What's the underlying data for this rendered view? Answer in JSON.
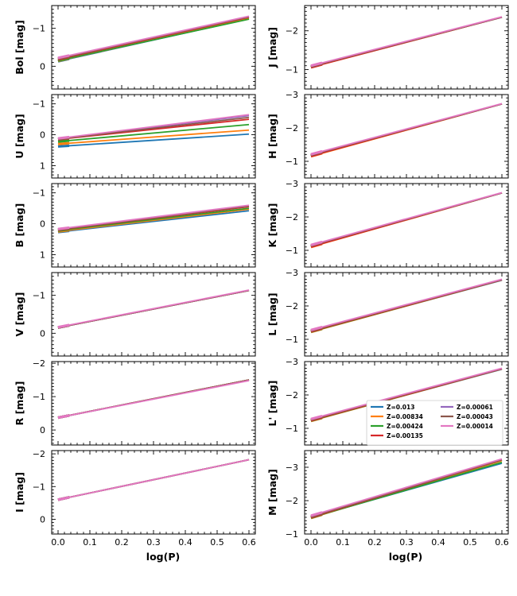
{
  "figure": {
    "xlabel": "log(P)"
  },
  "legend": {
    "entries": [
      {
        "label": "Z=0.013",
        "color": "#1f77b4"
      },
      {
        "label": "Z=0.00834",
        "color": "#ff7f0e"
      },
      {
        "label": "Z=0.00424",
        "color": "#2ca02c"
      },
      {
        "label": "Z=0.00135",
        "color": "#d62728"
      },
      {
        "label": "Z=0.00061",
        "color": "#9467bd"
      },
      {
        "label": "Z=0.00043",
        "color": "#8c564b"
      },
      {
        "label": "Z=0.00014",
        "color": "#e377c2"
      }
    ]
  },
  "chart_data": [
    {
      "type": "line",
      "panel": "Bol",
      "ylabel": "Bol [mag]",
      "xlim": [
        -0.02,
        0.62
      ],
      "ylim": [
        0.6,
        -1.6
      ],
      "yticks": [
        0,
        -1
      ],
      "yticklabels": [
        "0",
        "−1"
      ],
      "xticks": [
        0.0,
        0.1,
        0.2,
        0.3,
        0.4,
        0.5,
        0.6
      ],
      "xticklabels": [
        "0.0",
        "0.1",
        "0.2",
        "0.3",
        "0.4",
        "0.5",
        "0.6"
      ],
      "show_xticklabels": false,
      "x": [
        0.0,
        0.6
      ],
      "series": [
        {
          "name": "Z=0.013",
          "y": [
            -0.13,
            -1.25
          ]
        },
        {
          "name": "Z=0.00834",
          "y": [
            -0.14,
            -1.26
          ]
        },
        {
          "name": "Z=0.00424",
          "y": [
            -0.15,
            -1.24
          ]
        },
        {
          "name": "Z=0.00135",
          "y": [
            -0.18,
            -1.29
          ]
        },
        {
          "name": "Z=0.00061",
          "y": [
            -0.21,
            -1.31
          ]
        },
        {
          "name": "Z=0.00043",
          "y": [
            -0.2,
            -1.3
          ]
        },
        {
          "name": "Z=0.00014",
          "y": [
            -0.22,
            -1.32
          ]
        }
      ]
    },
    {
      "type": "line",
      "panel": "U",
      "ylabel": "U [mag]",
      "xlim": [
        -0.02,
        0.62
      ],
      "ylim": [
        1.4,
        -1.3
      ],
      "yticks": [
        1,
        0,
        -1
      ],
      "yticklabels": [
        "1",
        "0",
        "−1"
      ],
      "xticks": [
        0.0,
        0.1,
        0.2,
        0.3,
        0.4,
        0.5,
        0.6
      ],
      "xticklabels": [
        "0.0",
        "0.1",
        "0.2",
        "0.3",
        "0.4",
        "0.5",
        "0.6"
      ],
      "show_xticklabels": false,
      "x": [
        0.0,
        0.6
      ],
      "series": [
        {
          "name": "Z=0.013",
          "y": [
            0.38,
            -0.02
          ]
        },
        {
          "name": "Z=0.00834",
          "y": [
            0.3,
            -0.15
          ]
        },
        {
          "name": "Z=0.00424",
          "y": [
            0.22,
            -0.33
          ]
        },
        {
          "name": "Z=0.00135",
          "y": [
            0.15,
            -0.5
          ]
        },
        {
          "name": "Z=0.00061",
          "y": [
            0.13,
            -0.62
          ]
        },
        {
          "name": "Z=0.00043",
          "y": [
            0.14,
            -0.56
          ]
        },
        {
          "name": "Z=0.00014",
          "y": [
            0.12,
            -0.65
          ]
        }
      ]
    },
    {
      "type": "line",
      "panel": "B",
      "ylabel": "B [mag]",
      "xlim": [
        -0.02,
        0.62
      ],
      "ylim": [
        1.4,
        -1.3
      ],
      "yticks": [
        1,
        0,
        -1
      ],
      "yticklabels": [
        "1",
        "0",
        "−1"
      ],
      "xticks": [
        0.0,
        0.1,
        0.2,
        0.3,
        0.4,
        0.5,
        0.6
      ],
      "xticklabels": [
        "0.0",
        "0.1",
        "0.2",
        "0.3",
        "0.4",
        "0.5",
        "0.6"
      ],
      "show_xticklabels": false,
      "x": [
        0.0,
        0.6
      ],
      "series": [
        {
          "name": "Z=0.013",
          "y": [
            0.27,
            -0.42
          ]
        },
        {
          "name": "Z=0.00834",
          "y": [
            0.25,
            -0.47
          ]
        },
        {
          "name": "Z=0.00424",
          "y": [
            0.22,
            -0.5
          ]
        },
        {
          "name": "Z=0.00135",
          "y": [
            0.2,
            -0.55
          ]
        },
        {
          "name": "Z=0.00061",
          "y": [
            0.18,
            -0.59
          ]
        },
        {
          "name": "Z=0.00043",
          "y": [
            0.19,
            -0.57
          ]
        },
        {
          "name": "Z=0.00014",
          "y": [
            0.17,
            -0.6
          ]
        }
      ]
    },
    {
      "type": "line",
      "panel": "V",
      "ylabel": "V [mag]",
      "xlim": [
        -0.02,
        0.62
      ],
      "ylim": [
        0.6,
        -1.6
      ],
      "yticks": [
        0,
        -1
      ],
      "yticklabels": [
        "0",
        "−1"
      ],
      "xticks": [
        0.0,
        0.1,
        0.2,
        0.3,
        0.4,
        0.5,
        0.6
      ],
      "xticklabels": [
        "0.0",
        "0.1",
        "0.2",
        "0.3",
        "0.4",
        "0.5",
        "0.6"
      ],
      "show_xticklabels": false,
      "x": [
        0.0,
        0.6
      ],
      "series": [
        {
          "name": "Z=0.013",
          "y": [
            -0.15,
            -1.13
          ]
        },
        {
          "name": "Z=0.00834",
          "y": [
            -0.15,
            -1.13
          ]
        },
        {
          "name": "Z=0.00424",
          "y": [
            -0.15,
            -1.13
          ]
        },
        {
          "name": "Z=0.00135",
          "y": [
            -0.15,
            -1.13
          ]
        },
        {
          "name": "Z=0.00061",
          "y": [
            -0.15,
            -1.13
          ]
        },
        {
          "name": "Z=0.00043",
          "y": [
            -0.15,
            -1.13
          ]
        },
        {
          "name": "Z=0.00014",
          "y": [
            -0.16,
            -1.14
          ]
        }
      ]
    },
    {
      "type": "line",
      "panel": "R",
      "ylabel": "R [mag]",
      "xlim": [
        -0.02,
        0.62
      ],
      "ylim": [
        0.45,
        -2.05
      ],
      "yticks": [
        0,
        -1,
        -2
      ],
      "yticklabels": [
        "0",
        "−1",
        "−2"
      ],
      "xticks": [
        0.0,
        0.1,
        0.2,
        0.3,
        0.4,
        0.5,
        0.6
      ],
      "xticklabels": [
        "0.0",
        "0.1",
        "0.2",
        "0.3",
        "0.4",
        "0.5",
        "0.6"
      ],
      "show_xticklabels": false,
      "x": [
        0.0,
        0.6
      ],
      "series": [
        {
          "name": "Z=0.013",
          "y": [
            -0.37,
            -1.5
          ]
        },
        {
          "name": "Z=0.00834",
          "y": [
            -0.37,
            -1.5
          ]
        },
        {
          "name": "Z=0.00424",
          "y": [
            -0.37,
            -1.5
          ]
        },
        {
          "name": "Z=0.00135",
          "y": [
            -0.37,
            -1.5
          ]
        },
        {
          "name": "Z=0.00061",
          "y": [
            -0.37,
            -1.49
          ]
        },
        {
          "name": "Z=0.00043",
          "y": [
            -0.37,
            -1.5
          ]
        },
        {
          "name": "Z=0.00014",
          "y": [
            -0.37,
            -1.48
          ]
        }
      ]
    },
    {
      "type": "line",
      "panel": "I",
      "ylabel": "I [mag]",
      "xlim": [
        -0.02,
        0.62
      ],
      "ylim": [
        0.45,
        -2.1
      ],
      "yticks": [
        0,
        -1,
        -2
      ],
      "yticklabels": [
        "0",
        "−1",
        "−2"
      ],
      "xticks": [
        0.0,
        0.1,
        0.2,
        0.3,
        0.4,
        0.5,
        0.6
      ],
      "xticklabels": [
        "0.0",
        "0.1",
        "0.2",
        "0.3",
        "0.4",
        "0.5",
        "0.6"
      ],
      "show_xticklabels": true,
      "x": [
        0.0,
        0.6
      ],
      "series": [
        {
          "name": "Z=0.013",
          "y": [
            -0.6,
            -1.82
          ]
        },
        {
          "name": "Z=0.00834",
          "y": [
            -0.6,
            -1.82
          ]
        },
        {
          "name": "Z=0.00424",
          "y": [
            -0.6,
            -1.82
          ]
        },
        {
          "name": "Z=0.00135",
          "y": [
            -0.6,
            -1.82
          ]
        },
        {
          "name": "Z=0.00061",
          "y": [
            -0.6,
            -1.82
          ]
        },
        {
          "name": "Z=0.00043",
          "y": [
            -0.6,
            -1.82
          ]
        },
        {
          "name": "Z=0.00014",
          "y": [
            -0.6,
            -1.82
          ]
        }
      ]
    },
    {
      "type": "line",
      "panel": "J",
      "ylabel": "J [mag]",
      "xlim": [
        -0.02,
        0.62
      ],
      "ylim": [
        -0.5,
        -2.65
      ],
      "yticks": [
        -1,
        -2
      ],
      "yticklabels": [
        "−1",
        "−2"
      ],
      "xticks": [
        0.0,
        0.1,
        0.2,
        0.3,
        0.4,
        0.5,
        0.6
      ],
      "xticklabels": [
        "0.0",
        "0.1",
        "0.2",
        "0.3",
        "0.4",
        "0.5",
        "0.6"
      ],
      "show_xticklabels": false,
      "x": [
        0.0,
        0.6
      ],
      "series": [
        {
          "name": "Z=0.013",
          "y": [
            -1.08,
            -2.35
          ]
        },
        {
          "name": "Z=0.00834",
          "y": [
            -1.06,
            -2.35
          ]
        },
        {
          "name": "Z=0.00424",
          "y": [
            -1.07,
            -2.35
          ]
        },
        {
          "name": "Z=0.00135",
          "y": [
            -1.06,
            -2.35
          ]
        },
        {
          "name": "Z=0.00061",
          "y": [
            -1.09,
            -2.35
          ]
        },
        {
          "name": "Z=0.00043",
          "y": [
            -1.08,
            -2.35
          ]
        },
        {
          "name": "Z=0.00014",
          "y": [
            -1.1,
            -2.36
          ]
        }
      ]
    },
    {
      "type": "line",
      "panel": "H",
      "ylabel": "H [mag]",
      "xlim": [
        -0.02,
        0.62
      ],
      "ylim": [
        -0.5,
        -3.0
      ],
      "yticks": [
        -1,
        -2,
        -3
      ],
      "yticklabels": [
        "−1",
        "−2",
        "−3"
      ],
      "xticks": [
        0.0,
        0.1,
        0.2,
        0.3,
        0.4,
        0.5,
        0.6
      ],
      "xticklabels": [
        "0.0",
        "0.1",
        "0.2",
        "0.3",
        "0.4",
        "0.5",
        "0.6"
      ],
      "show_xticklabels": false,
      "x": [
        0.0,
        0.6
      ],
      "series": [
        {
          "name": "Z=0.013",
          "y": [
            -1.18,
            -2.72
          ]
        },
        {
          "name": "Z=0.00834",
          "y": [
            -1.15,
            -2.72
          ]
        },
        {
          "name": "Z=0.00424",
          "y": [
            -1.17,
            -2.72
          ]
        },
        {
          "name": "Z=0.00135",
          "y": [
            -1.16,
            -2.72
          ]
        },
        {
          "name": "Z=0.00061",
          "y": [
            -1.2,
            -2.72
          ]
        },
        {
          "name": "Z=0.00043",
          "y": [
            -1.19,
            -2.72
          ]
        },
        {
          "name": "Z=0.00014",
          "y": [
            -1.21,
            -2.73
          ]
        }
      ]
    },
    {
      "type": "line",
      "panel": "K",
      "ylabel": "K [mag]",
      "xlim": [
        -0.02,
        0.62
      ],
      "ylim": [
        -0.5,
        -3.0
      ],
      "yticks": [
        -1,
        -2,
        -3
      ],
      "yticklabels": [
        "−1",
        "−2",
        "−3"
      ],
      "xticks": [
        0.0,
        0.1,
        0.2,
        0.3,
        0.4,
        0.5,
        0.6
      ],
      "xticklabels": [
        "0.0",
        "0.1",
        "0.2",
        "0.3",
        "0.4",
        "0.5",
        "0.6"
      ],
      "show_xticklabels": false,
      "x": [
        0.0,
        0.6
      ],
      "series": [
        {
          "name": "Z=0.013",
          "y": [
            -1.12,
            -2.72
          ]
        },
        {
          "name": "Z=0.00834",
          "y": [
            -1.1,
            -2.72
          ]
        },
        {
          "name": "Z=0.00424",
          "y": [
            -1.12,
            -2.72
          ]
        },
        {
          "name": "Z=0.00135",
          "y": [
            -1.11,
            -2.72
          ]
        },
        {
          "name": "Z=0.00061",
          "y": [
            -1.15,
            -2.72
          ]
        },
        {
          "name": "Z=0.00043",
          "y": [
            -1.14,
            -2.72
          ]
        },
        {
          "name": "Z=0.00014",
          "y": [
            -1.16,
            -2.73
          ]
        }
      ]
    },
    {
      "type": "line",
      "panel": "L",
      "ylabel": "L [mag]",
      "xlim": [
        -0.02,
        0.62
      ],
      "ylim": [
        -0.5,
        -3.0
      ],
      "yticks": [
        -1,
        -2,
        -3
      ],
      "yticklabels": [
        "−1",
        "−2",
        "−3"
      ],
      "xticks": [
        0.0,
        0.1,
        0.2,
        0.3,
        0.4,
        0.5,
        0.6
      ],
      "xticklabels": [
        "0.0",
        "0.1",
        "0.2",
        "0.3",
        "0.4",
        "0.5",
        "0.6"
      ],
      "show_xticklabels": false,
      "x": [
        0.0,
        0.6
      ],
      "series": [
        {
          "name": "Z=0.013",
          "y": [
            -1.23,
            -2.77
          ]
        },
        {
          "name": "Z=0.00834",
          "y": [
            -1.22,
            -2.78
          ]
        },
        {
          "name": "Z=0.00424",
          "y": [
            -1.23,
            -2.78
          ]
        },
        {
          "name": "Z=0.00135",
          "y": [
            -1.24,
            -2.78
          ]
        },
        {
          "name": "Z=0.00061",
          "y": [
            -1.27,
            -2.79
          ]
        },
        {
          "name": "Z=0.00043",
          "y": [
            -1.26,
            -2.79
          ]
        },
        {
          "name": "Z=0.00014",
          "y": [
            -1.28,
            -2.8
          ]
        }
      ]
    },
    {
      "type": "line",
      "panel": "L'",
      "ylabel": "L' [mag]",
      "xlim": [
        -0.02,
        0.62
      ],
      "ylim": [
        -0.5,
        -3.0
      ],
      "yticks": [
        -1,
        -2,
        -3
      ],
      "yticklabels": [
        "−1",
        "−2",
        "−3"
      ],
      "xticks": [
        0.0,
        0.1,
        0.2,
        0.3,
        0.4,
        0.5,
        0.6
      ],
      "xticklabels": [
        "0.0",
        "0.1",
        "0.2",
        "0.3",
        "0.4",
        "0.5",
        "0.6"
      ],
      "show_xticklabels": false,
      "x": [
        0.0,
        0.6
      ],
      "series": [
        {
          "name": "Z=0.013",
          "y": [
            -1.23,
            -2.77
          ]
        },
        {
          "name": "Z=0.00834",
          "y": [
            -1.22,
            -2.78
          ]
        },
        {
          "name": "Z=0.00424",
          "y": [
            -1.23,
            -2.78
          ]
        },
        {
          "name": "Z=0.00135",
          "y": [
            -1.24,
            -2.78
          ]
        },
        {
          "name": "Z=0.00061",
          "y": [
            -1.27,
            -2.79
          ]
        },
        {
          "name": "Z=0.00043",
          "y": [
            -1.26,
            -2.79
          ]
        },
        {
          "name": "Z=0.00014",
          "y": [
            -1.28,
            -2.8
          ]
        }
      ]
    },
    {
      "type": "line",
      "panel": "M",
      "ylabel": "M [mag]",
      "xlim": [
        -0.02,
        0.62
      ],
      "ylim": [
        -1.0,
        -3.5
      ],
      "yticks": [
        -1,
        -2,
        -3
      ],
      "yticklabels": [
        "−1",
        "−2",
        "−3"
      ],
      "xticks": [
        0.0,
        0.1,
        0.2,
        0.3,
        0.4,
        0.5,
        0.6
      ],
      "xticklabels": [
        "0.0",
        "0.1",
        "0.2",
        "0.3",
        "0.4",
        "0.5",
        "0.6"
      ],
      "show_xticklabels": true,
      "x": [
        0.0,
        0.6
      ],
      "series": [
        {
          "name": "Z=0.013",
          "y": [
            -1.5,
            -3.12
          ]
        },
        {
          "name": "Z=0.00834",
          "y": [
            -1.48,
            -3.2
          ]
        },
        {
          "name": "Z=0.00424",
          "y": [
            -1.49,
            -3.15
          ]
        },
        {
          "name": "Z=0.00135",
          "y": [
            -1.5,
            -3.22
          ]
        },
        {
          "name": "Z=0.00061",
          "y": [
            -1.53,
            -3.23
          ]
        },
        {
          "name": "Z=0.00043",
          "y": [
            -1.52,
            -3.22
          ]
        },
        {
          "name": "Z=0.00014",
          "y": [
            -1.55,
            -3.25
          ]
        }
      ]
    }
  ]
}
